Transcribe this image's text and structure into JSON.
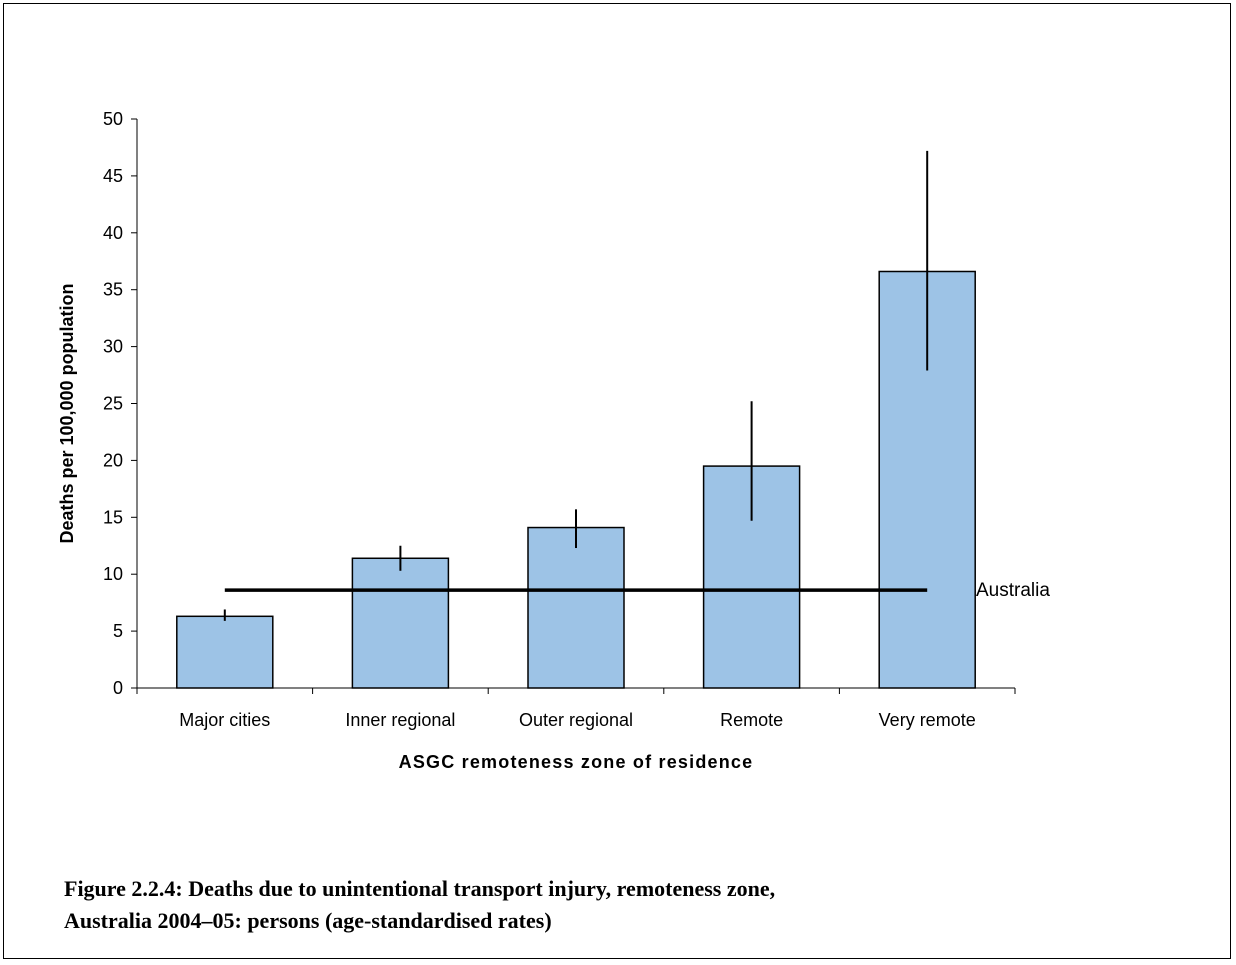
{
  "caption": {
    "line1": "Figure 2.2.4: Deaths due to unintentional transport injury, remoteness zone,",
    "line2": "Australia 2004–05: persons (age-standardised rates)"
  },
  "chart_data": {
    "type": "bar",
    "title": "",
    "xlabel": "ASGC remoteness zone of residence",
    "ylabel": "Deaths per 100,000 population",
    "ylim": [
      0,
      50
    ],
    "yticks": [
      0,
      5,
      10,
      15,
      20,
      25,
      30,
      35,
      40,
      45,
      50
    ],
    "categories": [
      "Major cities",
      "Inner regional",
      "Outer regional",
      "Remote",
      "Very remote"
    ],
    "values": [
      6.3,
      11.4,
      14.1,
      19.5,
      36.6
    ],
    "error_bars": [
      {
        "low": 5.9,
        "high": 6.9
      },
      {
        "low": 10.3,
        "high": 12.5
      },
      {
        "low": 12.3,
        "high": 15.7
      },
      {
        "low": 14.7,
        "high": 25.2
      },
      {
        "low": 27.9,
        "high": 47.2
      }
    ],
    "reference_line": {
      "label": "Australia",
      "value": 8.6
    },
    "bar_color": "#9DC3E6",
    "grid": false,
    "legend": "none"
  }
}
